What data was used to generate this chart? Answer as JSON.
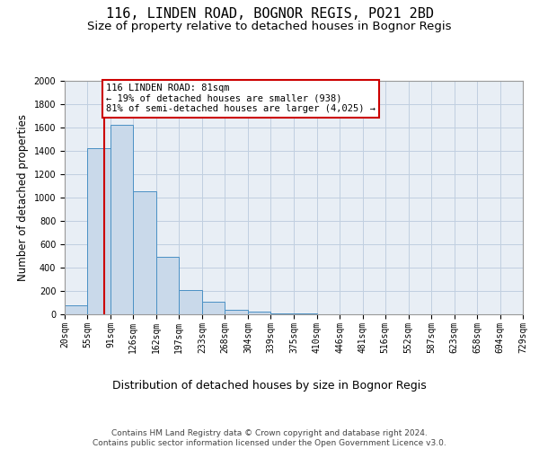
{
  "title1": "116, LINDEN ROAD, BOGNOR REGIS, PO21 2BD",
  "title2": "Size of property relative to detached houses in Bognor Regis",
  "xlabel": "Distribution of detached houses by size in Bognor Regis",
  "ylabel": "Number of detached properties",
  "bin_edges": [
    20,
    55,
    91,
    126,
    162,
    197,
    233,
    268,
    304,
    339,
    375,
    410,
    446,
    481,
    516,
    552,
    587,
    623,
    658,
    694,
    729
  ],
  "bar_heights": [
    75,
    1420,
    1620,
    1050,
    490,
    205,
    105,
    35,
    25,
    8,
    5,
    3,
    2,
    2,
    1,
    1,
    0,
    0,
    0,
    0
  ],
  "bar_facecolor": "#c9d9ea",
  "bar_edgecolor": "#4a90c4",
  "grid_color": "#c0cfe0",
  "background_color": "#e8eef5",
  "vline_x": 81,
  "vline_color": "#cc0000",
  "annotation_text": "116 LINDEN ROAD: 81sqm\n← 19% of detached houses are smaller (938)\n81% of semi-detached houses are larger (4,025) →",
  "annotation_bbox_edgecolor": "#cc0000",
  "annotation_bbox_facecolor": "#ffffff",
  "ylim": [
    0,
    2000
  ],
  "yticks": [
    0,
    200,
    400,
    600,
    800,
    1000,
    1200,
    1400,
    1600,
    1800,
    2000
  ],
  "tick_labels": [
    "20sqm",
    "55sqm",
    "91sqm",
    "126sqm",
    "162sqm",
    "197sqm",
    "233sqm",
    "268sqm",
    "304sqm",
    "339sqm",
    "375sqm",
    "410sqm",
    "446sqm",
    "481sqm",
    "516sqm",
    "552sqm",
    "587sqm",
    "623sqm",
    "658sqm",
    "694sqm",
    "729sqm"
  ],
  "footnote": "Contains HM Land Registry data © Crown copyright and database right 2024.\nContains public sector information licensed under the Open Government Licence v3.0.",
  "title1_fontsize": 11,
  "title2_fontsize": 9.5,
  "xlabel_fontsize": 9,
  "ylabel_fontsize": 8.5,
  "tick_fontsize": 7,
  "footnote_fontsize": 6.5
}
